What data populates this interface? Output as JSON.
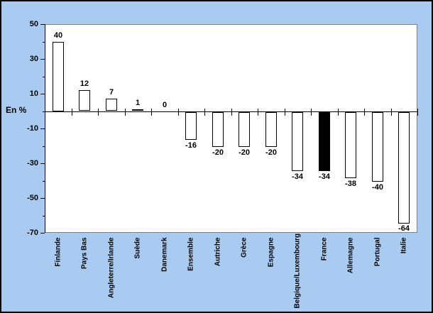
{
  "chart_data": {
    "type": "bar",
    "title": "",
    "ylabel": "En %",
    "categories": [
      "Finlande",
      "Pays Bas",
      "Angleterre/Irlande",
      "Suède",
      "Danemark",
      "Ensemble",
      "Autriche",
      "Grèce",
      "Espagne",
      "Belgique/Luxembourg",
      "France",
      "Allemagne",
      "Portugal",
      "Italie"
    ],
    "values": [
      40,
      12,
      7,
      1,
      0,
      -16,
      -20,
      -20,
      -20,
      -34,
      -34,
      -38,
      -40,
      -64
    ],
    "bar_labels": [
      "40",
      "12",
      "7",
      "1",
      "0",
      "-16",
      "-20",
      "-20",
      "-20",
      "-34",
      "-34",
      "-38",
      "-40",
      "-64"
    ],
    "highlight_category": "France",
    "ylim": [
      -70,
      50
    ],
    "y_major_ticks": [
      50,
      30,
      10,
      -10,
      -30,
      -50,
      -70
    ],
    "y_minor_ticks": [
      40,
      20,
      0,
      -20,
      -40,
      -60
    ],
    "grid": false,
    "legend": false,
    "xlabel": "",
    "colors": {
      "chart_background": "#A9CBF1",
      "plot_background": "#FFFFFF",
      "bar_fill": "#FFFFFF",
      "bar_border": "#000000",
      "highlight_fill": "#000000",
      "plot_border": "#808080",
      "axis": "#000000",
      "text": "#000000"
    }
  }
}
